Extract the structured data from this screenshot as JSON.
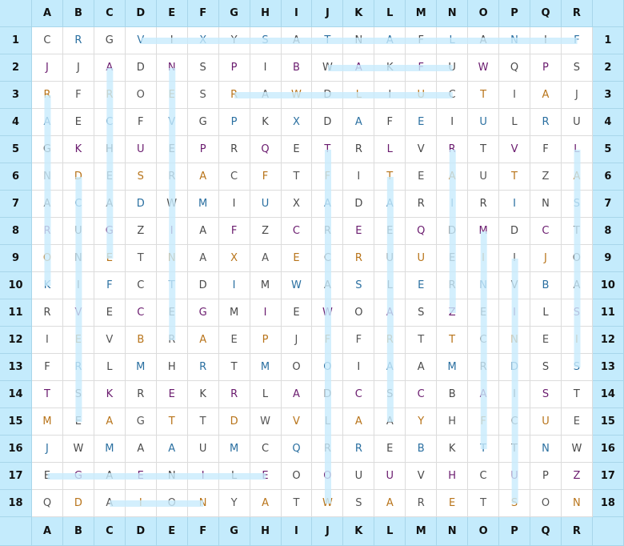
{
  "columns": [
    "A",
    "B",
    "C",
    "D",
    "E",
    "F",
    "G",
    "H",
    "I",
    "J",
    "K",
    "L",
    "M",
    "N",
    "O",
    "P",
    "Q",
    "R"
  ],
  "rows": [
    "1",
    "2",
    "3",
    "4",
    "5",
    "6",
    "7",
    "8",
    "9",
    "10",
    "11",
    "12",
    "13",
    "14",
    "15",
    "16",
    "17",
    "18"
  ],
  "grid": [
    "CRGVIXYSATNAFLANIF",
    "JJADNSPIBWAKFUWQPS",
    "RFROESRAWDLIUCTIAJ",
    "AECFVGPKXDAFEIULRU",
    "GKHUEPRQETRLVRTVFL",
    "NDESRACFTFITEAUTZA",
    "ACADWMIUXADARIRINS",
    "RUGZIAFZCREEQDMDCT",
    "ONETNAXAECRUUEIIJO",
    "KIFCTDIMWASLERNVBA",
    "RVECEGMIEWOASZEILS",
    "IEVBRAEPJFFRTTCNEI",
    "FRLMHRTMOOIAAMRDSS",
    "TSKREKRLADCSCBAIST",
    "MEAGTTDWVLAAYHFCUE",
    "JWMAAUMCQRREBKTTNW",
    "EGAENILEOOUUVHCUPZ",
    "QDAIONYATWSARETSON"
  ],
  "found_words": [
    {
      "start": "D1",
      "end": "R1"
    },
    {
      "start": "J2",
      "end": "N2"
    },
    {
      "start": "G3",
      "end": "N3"
    },
    {
      "start": "A3",
      "end": "A10"
    },
    {
      "start": "C2",
      "end": "C9"
    },
    {
      "start": "E2",
      "end": "E12"
    },
    {
      "start": "B6",
      "end": "B15"
    },
    {
      "start": "A17",
      "end": "H17"
    },
    {
      "start": "C18",
      "end": "F18"
    },
    {
      "start": "J5",
      "end": "J18"
    },
    {
      "start": "L6",
      "end": "L15"
    },
    {
      "start": "N5",
      "end": "N11"
    },
    {
      "start": "O8",
      "end": "O16"
    },
    {
      "start": "P9",
      "end": "P18"
    },
    {
      "start": "R5",
      "end": "R13"
    }
  ],
  "colors": {
    "header_bg": "#c4ebfc",
    "highlight": "#c8ebfc",
    "grid_line": "#dcdcdc"
  }
}
